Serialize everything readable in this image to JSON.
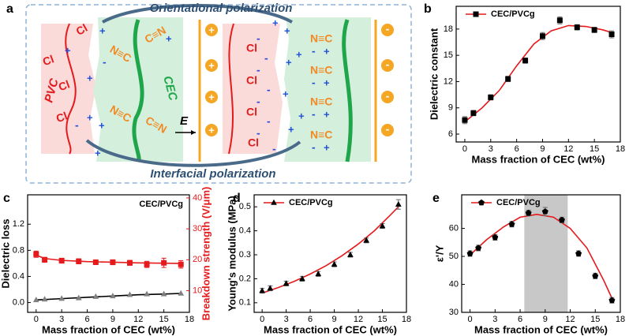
{
  "diagram": {
    "label": "a",
    "top_arrow": "Orientational polarization",
    "bottom_arrow": "Interfacial polarization",
    "pvc": "PVC",
    "cec": "CEC",
    "field": "E",
    "cl": "Cl",
    "cn": "N≡C",
    "cn_reverse": "C≡N",
    "plus": "+",
    "minus": "-"
  },
  "chart_data": [
    {
      "type": "scatter",
      "label": "b",
      "xlabel": "Mass fraction of CEC (wt%)",
      "ylabel": "Dielectric constant",
      "xlim": [
        -1,
        18
      ],
      "xticks": [
        0,
        3,
        6,
        9,
        12,
        15,
        18
      ],
      "ylim": [
        5.1,
        20.6
      ],
      "yticks": [
        6,
        9,
        12,
        15,
        18
      ],
      "legend": "upper left",
      "series": [
        {
          "name": "CEC/PVCg",
          "color": "#000000",
          "marker": "square",
          "x": [
            0,
            1,
            3,
            5,
            7,
            9,
            11,
            13,
            15,
            17
          ],
          "values": [
            7.6,
            8.4,
            10.2,
            12.3,
            14.4,
            17.2,
            19.0,
            18.2,
            17.9,
            17.4
          ],
          "errors": [
            0.4,
            0.3,
            0.3,
            0.3,
            0.3,
            0.4,
            0.4,
            0.3,
            0.3,
            0.4
          ]
        }
      ],
      "fit": [
        {
          "color": "#e41a1c",
          "x": [
            0,
            2,
            4,
            6,
            8,
            10,
            12,
            14,
            16,
            17
          ],
          "values": [
            7.4,
            9.0,
            11.0,
            13.8,
            16.3,
            17.8,
            18.4,
            18.3,
            17.9,
            17.6
          ]
        }
      ]
    },
    {
      "type": "scatter",
      "label": "c",
      "xlabel": "Mass fraction of CEC (wt%)",
      "ylabel": "Dielectric loss",
      "y2label": "Breakdown strength (V/μm)",
      "annotation": "CEC/PVCg",
      "xlim": [
        -1,
        18
      ],
      "xticks": [
        0,
        3,
        6,
        9,
        12,
        15,
        18
      ],
      "ylim": [
        -0.15,
        1.65
      ],
      "yticks": [
        {
          "value": 0,
          "label": "0.0"
        },
        0.4,
        0.8,
        1.2
      ],
      "y2lim": [
        3,
        41
      ],
      "y2ticks": [
        10,
        20,
        30,
        40
      ],
      "y2color": "#e41a1c",
      "series": [
        {
          "color": "#808080",
          "marker": "triangle",
          "x": [
            0,
            1,
            3,
            5,
            7,
            9,
            11,
            13,
            15,
            17
          ],
          "values": [
            0.04,
            0.05,
            0.06,
            0.07,
            0.09,
            0.1,
            0.12,
            0.13,
            0.13,
            0.14
          ]
        },
        {
          "color": "#e41a1c",
          "marker": "square",
          "axis": "y2",
          "x": [
            0,
            1,
            3,
            5,
            7,
            9,
            11,
            13,
            15,
            17
          ],
          "values": [
            21.8,
            20.0,
            19.7,
            19.5,
            19.2,
            19.2,
            19.0,
            18.5,
            19.0,
            18.5
          ],
          "errors": [
            1.0,
            0.8,
            0.8,
            0.8,
            0.6,
            0.8,
            0.8,
            1.0,
            1.5,
            1.2
          ]
        }
      ],
      "fit": [
        {
          "color": "#000000",
          "x": [
            0,
            3,
            6,
            9,
            12,
            15,
            17
          ],
          "values": [
            0.04,
            0.06,
            0.08,
            0.1,
            0.12,
            0.13,
            0.14
          ]
        },
        {
          "color": "#e41a1c",
          "axis": "y2",
          "x": [
            0,
            1,
            3,
            6,
            9,
            12,
            15,
            17
          ],
          "values": [
            21.5,
            20.4,
            19.8,
            19.4,
            19.2,
            19.0,
            18.9,
            18.8
          ]
        }
      ]
    },
    {
      "type": "scatter",
      "label": "d",
      "xlabel": "Mass fraction of CEC (wt%)",
      "ylabel": "Young's modulus (MPa)",
      "xlim": [
        -1,
        18
      ],
      "xticks": [
        0,
        3,
        6,
        9,
        12,
        15,
        18
      ],
      "ylim": [
        0.06,
        0.55
      ],
      "yticks": [
        0.1,
        0.2,
        0.3,
        0.4,
        0.5
      ],
      "legend": "upper left",
      "series": [
        {
          "name": "CEC/PVCg",
          "color": "#000000",
          "marker": "triangle",
          "x": [
            0,
            1,
            3,
            5,
            7,
            9,
            11,
            13,
            15,
            17
          ],
          "values": [
            0.15,
            0.16,
            0.18,
            0.2,
            0.22,
            0.26,
            0.3,
            0.36,
            0.42,
            0.51
          ],
          "errors": [
            0.01,
            0.01,
            0.01,
            0.01,
            0.01,
            0.01,
            0.01,
            0.01,
            0.01,
            0.02
          ]
        }
      ],
      "fit": [
        {
          "color": "#e41a1c",
          "x": [
            0,
            2,
            4,
            6,
            8,
            10,
            12,
            14,
            16,
            17
          ],
          "values": [
            0.14,
            0.163,
            0.189,
            0.22,
            0.255,
            0.297,
            0.345,
            0.4,
            0.466,
            0.5
          ]
        }
      ]
    },
    {
      "type": "scatter",
      "label": "e",
      "xlabel": "Mass fraction of CEC (wt%)",
      "ylabel": "ε'/Y",
      "xlim": [
        -1,
        18
      ],
      "xticks": [
        0,
        3,
        6,
        9,
        12,
        15,
        18
      ],
      "ylim": [
        30,
        72
      ],
      "yticks": [
        30,
        40,
        50,
        60
      ],
      "legend": "upper left",
      "shade": {
        "from": 6.5,
        "to": 11.7,
        "color": "#c8c8c8"
      },
      "series": [
        {
          "name": "CEC/PVCg",
          "color": "#000000",
          "marker": "pentagon",
          "x": [
            0,
            1,
            3,
            5,
            7,
            9,
            11,
            13,
            15,
            17
          ],
          "values": [
            51,
            53,
            56.8,
            61.5,
            65.5,
            66,
            63,
            51,
            43,
            34.3
          ],
          "errors": [
            1,
            1,
            1,
            1,
            1,
            1.5,
            1,
            1,
            1,
            1
          ]
        }
      ],
      "fit": [
        {
          "color": "#e41a1c",
          "x": [
            0,
            2,
            4,
            6,
            8,
            10,
            12,
            14,
            16,
            17
          ],
          "values": [
            50.5,
            56,
            60.5,
            64,
            65,
            64,
            60,
            53,
            41.5,
            35
          ]
        }
      ]
    }
  ]
}
